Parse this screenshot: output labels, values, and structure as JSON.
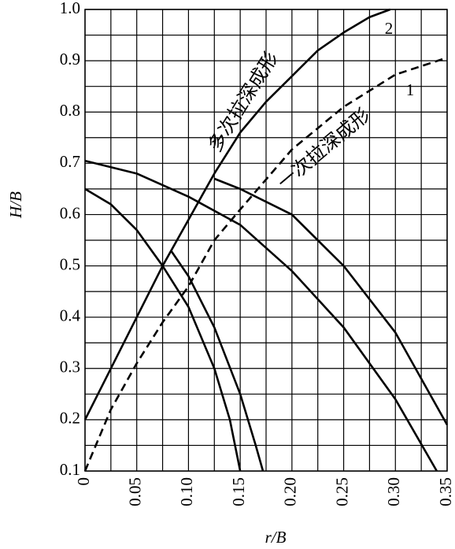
{
  "chart_data": {
    "type": "line",
    "xlabel": "r/B",
    "ylabel": "H/B",
    "xlim": [
      0,
      0.35
    ],
    "ylim": [
      0.1,
      1.0
    ],
    "xticks": [
      0,
      0.05,
      {
        "value": 0.1,
        "label": "0.10"
      },
      0.15,
      {
        "value": 0.2,
        "label": "0.20"
      },
      0.25,
      {
        "value": 0.3,
        "label": "0.30"
      },
      0.35
    ],
    "yticks": [
      0.1,
      0.2,
      0.3,
      0.4,
      0.5,
      0.6,
      0.7,
      0.8,
      0.9,
      {
        "value": 1,
        "label": "1.0"
      }
    ],
    "xminorticks": [
      0.025,
      0.075,
      0.125,
      0.175,
      0.225,
      0.275,
      0.325
    ],
    "yminorticks": [
      0.15,
      0.25,
      0.35,
      0.45,
      0.55,
      0.65,
      0.75,
      0.85,
      0.95
    ],
    "grid": true,
    "annotations": [
      "多次拉深成形",
      "一次拉深成形"
    ],
    "series": [
      {
        "name": "2",
        "color": "#000000",
        "dash": false,
        "x": [
          0,
          0.025,
          0.05,
          0.075,
          0.1,
          0.125,
          0.15,
          0.175,
          0.2,
          0.225,
          0.25,
          0.275,
          0.295
        ],
        "values": [
          0.2,
          0.3,
          0.4,
          0.5,
          0.59,
          0.68,
          0.76,
          0.82,
          0.87,
          0.92,
          0.955,
          0.985,
          1.0
        ]
      },
      {
        "name": "1",
        "color": "#000000",
        "dash": true,
        "x": [
          0,
          0.025,
          0.05,
          0.075,
          0.1,
          0.125,
          0.15,
          0.2,
          0.25,
          0.3,
          0.35
        ],
        "values": [
          0.1,
          0.22,
          0.31,
          0.39,
          0.46,
          0.55,
          0.61,
          0.727,
          0.81,
          0.873,
          0.906
        ]
      },
      {
        "color": "#000000",
        "dash": false,
        "x": [
          0,
          0.05,
          0.1,
          0.15,
          0.2,
          0.25,
          0.3,
          0.34
        ],
        "values": [
          0.705,
          0.68,
          0.635,
          0.58,
          0.49,
          0.38,
          0.24,
          0.1
        ]
      },
      {
        "color": "#000000",
        "dash": false,
        "x": [
          0.125,
          0.15,
          0.2,
          0.25,
          0.3,
          0.35
        ],
        "values": [
          0.67,
          0.65,
          0.6,
          0.5,
          0.37,
          0.19
        ]
      },
      {
        "color": "#000000",
        "dash": false,
        "x": [
          0,
          0.025,
          0.05,
          0.075,
          0.1,
          0.125,
          0.14,
          0.15
        ],
        "values": [
          0.65,
          0.62,
          0.57,
          0.5,
          0.42,
          0.3,
          0.2,
          0.1
        ]
      },
      {
        "color": "#000000",
        "dash": false,
        "x": [
          0.083,
          0.1,
          0.125,
          0.15,
          0.165,
          0.172
        ],
        "values": [
          0.53,
          0.48,
          0.38,
          0.25,
          0.15,
          0.1
        ]
      }
    ]
  }
}
